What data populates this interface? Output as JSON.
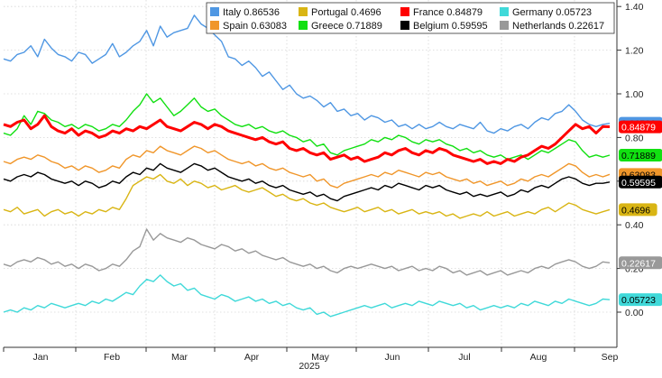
{
  "chart_data": {
    "type": "line",
    "year_label": "2025",
    "x_tick_labels": [
      "Jan",
      "Feb",
      "Mar",
      "Apr",
      "May",
      "Jun",
      "Jul",
      "Aug",
      "Sep"
    ],
    "y_tick_labels": [
      "0.00",
      "0.20",
      "0.40",
      "0.60",
      "0.80",
      "1.00",
      "1.20",
      "1.40"
    ],
    "ylim": [
      -0.1,
      1.45
    ],
    "grid": true,
    "legend_position": "top-right",
    "series": [
      {
        "name": "Italy",
        "last": "0.86536",
        "color": "#4f97e3",
        "values": [
          1.16,
          1.15,
          1.18,
          1.19,
          1.22,
          1.17,
          1.25,
          1.21,
          1.18,
          1.17,
          1.15,
          1.19,
          1.18,
          1.14,
          1.16,
          1.18,
          1.23,
          1.17,
          1.19,
          1.22,
          1.24,
          1.29,
          1.22,
          1.31,
          1.26,
          1.28,
          1.29,
          1.3,
          1.36,
          1.32,
          1.3,
          1.27,
          1.24,
          1.17,
          1.16,
          1.13,
          1.15,
          1.12,
          1.08,
          1.1,
          1.06,
          1.02,
          1.04,
          1.0,
          0.98,
          0.99,
          0.97,
          0.94,
          0.96,
          0.92,
          0.93,
          0.9,
          0.91,
          0.88,
          0.9,
          0.89,
          0.87,
          0.88,
          0.85,
          0.86,
          0.84,
          0.86,
          0.84,
          0.85,
          0.87,
          0.85,
          0.84,
          0.86,
          0.85,
          0.84,
          0.87,
          0.83,
          0.82,
          0.84,
          0.83,
          0.85,
          0.86,
          0.84,
          0.87,
          0.89,
          0.88,
          0.91,
          0.92,
          0.95,
          0.92,
          0.88,
          0.86,
          0.85,
          0.86,
          0.865
        ]
      },
      {
        "name": "Portugal",
        "last": "0.4696",
        "color": "#d9b514",
        "values": [
          0.47,
          0.46,
          0.48,
          0.45,
          0.46,
          0.47,
          0.44,
          0.46,
          0.47,
          0.45,
          0.46,
          0.44,
          0.46,
          0.45,
          0.47,
          0.46,
          0.48,
          0.47,
          0.52,
          0.58,
          0.6,
          0.62,
          0.61,
          0.63,
          0.6,
          0.59,
          0.61,
          0.58,
          0.6,
          0.59,
          0.57,
          0.58,
          0.56,
          0.57,
          0.58,
          0.56,
          0.55,
          0.56,
          0.57,
          0.55,
          0.53,
          0.54,
          0.52,
          0.51,
          0.52,
          0.5,
          0.49,
          0.5,
          0.48,
          0.47,
          0.46,
          0.47,
          0.48,
          0.46,
          0.47,
          0.48,
          0.46,
          0.47,
          0.45,
          0.46,
          0.47,
          0.45,
          0.46,
          0.45,
          0.46,
          0.44,
          0.45,
          0.43,
          0.44,
          0.45,
          0.44,
          0.46,
          0.44,
          0.45,
          0.46,
          0.44,
          0.45,
          0.46,
          0.45,
          0.47,
          0.48,
          0.46,
          0.48,
          0.5,
          0.49,
          0.47,
          0.46,
          0.45,
          0.46,
          0.4696
        ]
      },
      {
        "name": "France",
        "last": "0.84879",
        "color": "#ff0000",
        "values": [
          0.86,
          0.85,
          0.87,
          0.88,
          0.84,
          0.86,
          0.9,
          0.85,
          0.83,
          0.82,
          0.84,
          0.81,
          0.83,
          0.82,
          0.8,
          0.81,
          0.83,
          0.82,
          0.84,
          0.83,
          0.85,
          0.84,
          0.86,
          0.88,
          0.85,
          0.84,
          0.83,
          0.85,
          0.87,
          0.86,
          0.84,
          0.86,
          0.85,
          0.83,
          0.82,
          0.81,
          0.8,
          0.79,
          0.8,
          0.78,
          0.77,
          0.78,
          0.75,
          0.74,
          0.75,
          0.73,
          0.72,
          0.73,
          0.7,
          0.71,
          0.72,
          0.7,
          0.71,
          0.69,
          0.7,
          0.71,
          0.73,
          0.72,
          0.74,
          0.75,
          0.73,
          0.72,
          0.74,
          0.73,
          0.75,
          0.74,
          0.72,
          0.71,
          0.7,
          0.69,
          0.7,
          0.68,
          0.69,
          0.68,
          0.7,
          0.69,
          0.71,
          0.72,
          0.74,
          0.76,
          0.75,
          0.77,
          0.8,
          0.83,
          0.86,
          0.84,
          0.85,
          0.82,
          0.85,
          0.849
        ]
      },
      {
        "name": "Germany",
        "last": "0.05723",
        "color": "#40d9d9",
        "values": [
          0.0,
          0.01,
          0.0,
          0.02,
          0.01,
          0.03,
          0.02,
          0.04,
          0.03,
          0.02,
          0.03,
          0.04,
          0.03,
          0.05,
          0.04,
          0.06,
          0.05,
          0.07,
          0.09,
          0.08,
          0.12,
          0.15,
          0.14,
          0.17,
          0.14,
          0.12,
          0.13,
          0.1,
          0.11,
          0.08,
          0.07,
          0.06,
          0.08,
          0.07,
          0.05,
          0.06,
          0.07,
          0.05,
          0.06,
          0.04,
          0.05,
          0.03,
          0.04,
          0.02,
          0.01,
          0.02,
          -0.01,
          0.0,
          -0.02,
          -0.01,
          0.0,
          0.01,
          0.02,
          0.03,
          0.02,
          0.03,
          0.04,
          0.02,
          0.03,
          0.04,
          0.03,
          0.05,
          0.04,
          0.03,
          0.05,
          0.04,
          0.03,
          0.04,
          0.02,
          0.03,
          0.01,
          0.02,
          0.03,
          0.02,
          0.03,
          0.02,
          0.04,
          0.03,
          0.05,
          0.04,
          0.03,
          0.05,
          0.04,
          0.06,
          0.05,
          0.04,
          0.03,
          0.04,
          0.06,
          0.057
        ]
      },
      {
        "name": "Spain",
        "last": "0.63083",
        "color": "#f0962a",
        "values": [
          0.69,
          0.68,
          0.7,
          0.71,
          0.7,
          0.72,
          0.71,
          0.69,
          0.68,
          0.66,
          0.67,
          0.65,
          0.67,
          0.66,
          0.64,
          0.65,
          0.67,
          0.66,
          0.7,
          0.72,
          0.71,
          0.74,
          0.73,
          0.76,
          0.74,
          0.73,
          0.72,
          0.74,
          0.76,
          0.75,
          0.73,
          0.74,
          0.72,
          0.7,
          0.69,
          0.68,
          0.69,
          0.67,
          0.68,
          0.66,
          0.65,
          0.66,
          0.64,
          0.63,
          0.62,
          0.63,
          0.6,
          0.61,
          0.58,
          0.57,
          0.59,
          0.6,
          0.61,
          0.62,
          0.63,
          0.62,
          0.64,
          0.63,
          0.65,
          0.64,
          0.63,
          0.62,
          0.64,
          0.63,
          0.64,
          0.62,
          0.61,
          0.6,
          0.61,
          0.59,
          0.6,
          0.58,
          0.59,
          0.6,
          0.58,
          0.59,
          0.61,
          0.6,
          0.62,
          0.63,
          0.62,
          0.64,
          0.66,
          0.68,
          0.67,
          0.64,
          0.62,
          0.63,
          0.62,
          0.631
        ]
      },
      {
        "name": "Greece",
        "last": "0.71889",
        "color": "#11e011",
        "values": [
          0.82,
          0.81,
          0.84,
          0.9,
          0.86,
          0.92,
          0.91,
          0.88,
          0.87,
          0.85,
          0.86,
          0.84,
          0.86,
          0.85,
          0.83,
          0.84,
          0.86,
          0.85,
          0.88,
          0.92,
          0.95,
          1.0,
          0.96,
          0.98,
          0.94,
          0.9,
          0.92,
          0.95,
          0.98,
          0.94,
          0.92,
          0.93,
          0.9,
          0.88,
          0.86,
          0.85,
          0.86,
          0.84,
          0.85,
          0.83,
          0.82,
          0.83,
          0.81,
          0.8,
          0.78,
          0.79,
          0.76,
          0.77,
          0.73,
          0.72,
          0.74,
          0.75,
          0.76,
          0.77,
          0.79,
          0.78,
          0.8,
          0.79,
          0.81,
          0.8,
          0.78,
          0.77,
          0.79,
          0.78,
          0.79,
          0.77,
          0.76,
          0.74,
          0.75,
          0.73,
          0.74,
          0.72,
          0.71,
          0.72,
          0.7,
          0.71,
          0.72,
          0.7,
          0.72,
          0.74,
          0.73,
          0.75,
          0.77,
          0.79,
          0.78,
          0.74,
          0.71,
          0.72,
          0.71,
          0.719
        ]
      },
      {
        "name": "Belgium",
        "last": "0.59595",
        "color": "#000000",
        "values": [
          0.61,
          0.6,
          0.62,
          0.63,
          0.62,
          0.64,
          0.63,
          0.61,
          0.6,
          0.59,
          0.6,
          0.58,
          0.6,
          0.59,
          0.57,
          0.58,
          0.6,
          0.59,
          0.62,
          0.64,
          0.63,
          0.66,
          0.65,
          0.68,
          0.66,
          0.65,
          0.64,
          0.66,
          0.68,
          0.67,
          0.65,
          0.66,
          0.64,
          0.62,
          0.61,
          0.6,
          0.61,
          0.59,
          0.6,
          0.58,
          0.57,
          0.58,
          0.56,
          0.55,
          0.54,
          0.55,
          0.53,
          0.54,
          0.52,
          0.51,
          0.53,
          0.54,
          0.55,
          0.56,
          0.57,
          0.56,
          0.58,
          0.57,
          0.59,
          0.58,
          0.57,
          0.56,
          0.58,
          0.57,
          0.58,
          0.56,
          0.55,
          0.54,
          0.55,
          0.53,
          0.54,
          0.53,
          0.54,
          0.55,
          0.53,
          0.54,
          0.56,
          0.55,
          0.57,
          0.58,
          0.57,
          0.59,
          0.61,
          0.62,
          0.61,
          0.59,
          0.58,
          0.59,
          0.59,
          0.596
        ]
      },
      {
        "name": "Netherlands",
        "last": "0.22617",
        "color": "#999999",
        "values": [
          0.22,
          0.21,
          0.23,
          0.24,
          0.23,
          0.25,
          0.24,
          0.22,
          0.23,
          0.21,
          0.22,
          0.2,
          0.22,
          0.21,
          0.19,
          0.2,
          0.22,
          0.21,
          0.24,
          0.28,
          0.3,
          0.38,
          0.33,
          0.36,
          0.34,
          0.33,
          0.32,
          0.34,
          0.33,
          0.31,
          0.3,
          0.29,
          0.31,
          0.3,
          0.28,
          0.29,
          0.27,
          0.28,
          0.26,
          0.25,
          0.24,
          0.25,
          0.23,
          0.22,
          0.21,
          0.22,
          0.2,
          0.21,
          0.19,
          0.18,
          0.2,
          0.21,
          0.2,
          0.21,
          0.22,
          0.21,
          0.2,
          0.21,
          0.19,
          0.2,
          0.21,
          0.19,
          0.2,
          0.19,
          0.21,
          0.2,
          0.18,
          0.19,
          0.17,
          0.18,
          0.19,
          0.17,
          0.18,
          0.19,
          0.17,
          0.18,
          0.19,
          0.18,
          0.2,
          0.21,
          0.2,
          0.22,
          0.23,
          0.24,
          0.23,
          0.21,
          0.2,
          0.21,
          0.23,
          0.226
        ]
      }
    ]
  }
}
